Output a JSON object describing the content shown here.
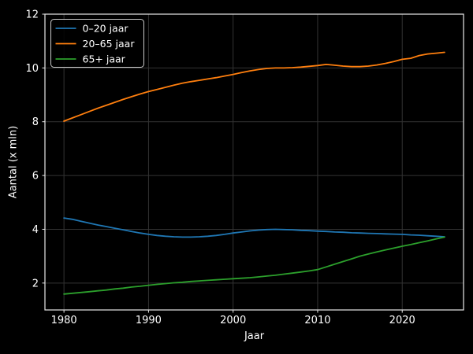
{
  "chart_data": {
    "type": "line",
    "title": "",
    "xlabel": "Jaar",
    "ylabel": "Aantal (x mln)",
    "x": [
      1980,
      1981,
      1982,
      1983,
      1984,
      1985,
      1986,
      1987,
      1988,
      1989,
      1990,
      1991,
      1992,
      1993,
      1994,
      1995,
      1996,
      1997,
      1998,
      1999,
      2000,
      2001,
      2002,
      2003,
      2004,
      2005,
      2006,
      2007,
      2008,
      2009,
      2010,
      2011,
      2012,
      2013,
      2014,
      2015,
      2016,
      2017,
      2018,
      2019,
      2020,
      2021,
      2022,
      2023,
      2024,
      2025
    ],
    "series": [
      {
        "name": "0–20 jaar",
        "color": "#1f77b4",
        "values": [
          4.42,
          4.37,
          4.3,
          4.23,
          4.16,
          4.1,
          4.04,
          3.98,
          3.92,
          3.86,
          3.81,
          3.77,
          3.74,
          3.72,
          3.71,
          3.71,
          3.72,
          3.74,
          3.77,
          3.81,
          3.86,
          3.9,
          3.94,
          3.97,
          3.99,
          4.0,
          3.99,
          3.98,
          3.96,
          3.95,
          3.93,
          3.92,
          3.9,
          3.89,
          3.87,
          3.86,
          3.85,
          3.84,
          3.83,
          3.82,
          3.81,
          3.79,
          3.78,
          3.76,
          3.74,
          3.72
        ]
      },
      {
        "name": "20–65 jaar",
        "color": "#ff7f0e",
        "values": [
          8.02,
          8.14,
          8.26,
          8.38,
          8.5,
          8.61,
          8.72,
          8.83,
          8.93,
          9.03,
          9.12,
          9.2,
          9.28,
          9.36,
          9.43,
          9.49,
          9.54,
          9.59,
          9.64,
          9.7,
          9.76,
          9.83,
          9.89,
          9.94,
          9.98,
          10.0,
          10.0,
          10.01,
          10.03,
          10.06,
          10.09,
          10.13,
          10.1,
          10.07,
          10.05,
          10.05,
          10.07,
          10.11,
          10.17,
          10.24,
          10.32,
          10.36,
          10.46,
          10.52,
          10.55,
          10.58
        ]
      },
      {
        "name": "65+ jaar",
        "color": "#2ca02c",
        "values": [
          1.59,
          1.62,
          1.65,
          1.68,
          1.71,
          1.74,
          1.78,
          1.81,
          1.85,
          1.88,
          1.92,
          1.95,
          1.98,
          2.01,
          2.03,
          2.06,
          2.08,
          2.1,
          2.12,
          2.14,
          2.16,
          2.18,
          2.2,
          2.23,
          2.26,
          2.29,
          2.33,
          2.37,
          2.41,
          2.45,
          2.5,
          2.6,
          2.7,
          2.8,
          2.9,
          3.0,
          3.08,
          3.16,
          3.23,
          3.3,
          3.37,
          3.43,
          3.5,
          3.57,
          3.64,
          3.71
        ]
      }
    ],
    "xlim": [
      1977.75,
      2027.25
    ],
    "ylim": [
      1,
      12
    ],
    "xticks": [
      1980,
      1990,
      2000,
      2010,
      2020
    ],
    "yticks": [
      2,
      4,
      6,
      8,
      10,
      12
    ],
    "grid": true,
    "legend_position": "upper left",
    "background_color": "#000000",
    "text_color": "#ffffff",
    "grid_color": "#333333",
    "spine_color": "#e8e8e8"
  }
}
